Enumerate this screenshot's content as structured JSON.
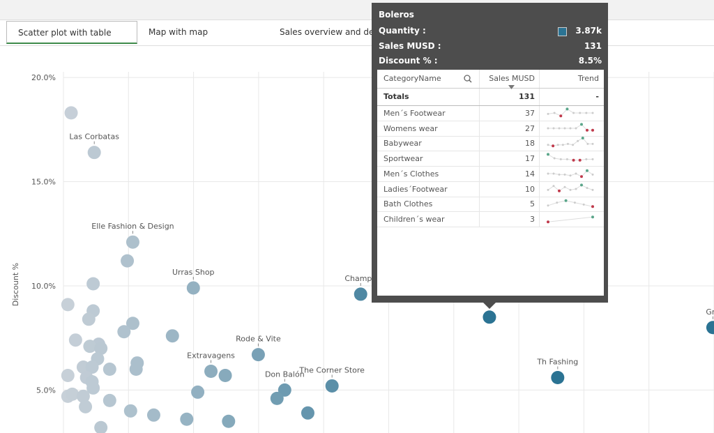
{
  "tabs": [
    "Scatter plot with table",
    "Map with map",
    "Sales overview and detai"
  ],
  "chart_data": {
    "type": "scatter",
    "ylabel": "Discount %",
    "ylim": [
      2.94,
      20.27
    ],
    "yticks": [
      {
        "value": 5,
        "label": "5.0%"
      },
      {
        "value": 10,
        "label": "10.0%"
      },
      {
        "value": 15,
        "label": "15.0%"
      },
      {
        "value": 20,
        "label": "20.0%"
      }
    ],
    "xlim": [
      0,
      5.91
    ],
    "color_range": [
      "#c9d1d9",
      "#2b7393"
    ],
    "x": [
      0.07,
      0.28,
      0.63,
      0.58,
      0.27,
      0.04,
      0.27,
      0.23,
      0.63,
      0.55,
      0.99,
      0.11,
      0.32,
      0.24,
      0.34,
      0.31,
      0.67,
      0.66,
      0.18,
      0.42,
      0.26,
      0.04,
      0.21,
      0.26,
      0.27,
      0.04,
      0.08,
      0.18,
      0.2,
      0.42,
      0.61,
      0.82,
      1.12,
      1.5,
      0.34,
      1.22,
      1.18,
      1.34,
      1.47,
      1.77,
      2.01,
      1.94,
      2.22,
      2.44,
      2.7,
      3.87,
      4.49,
      5.9
    ],
    "values": [
      18.3,
      16.4,
      12.1,
      11.2,
      10.1,
      9.1,
      8.8,
      8.4,
      8.2,
      7.8,
      7.6,
      7.4,
      7.2,
      7.1,
      7.0,
      6.5,
      6.3,
      6.0,
      6.1,
      6.0,
      6.1,
      5.7,
      5.6,
      5.4,
      5.1,
      4.7,
      4.8,
      4.7,
      4.2,
      4.5,
      4.0,
      3.8,
      3.6,
      3.5,
      3.2,
      4.9,
      9.9,
      5.9,
      5.7,
      6.7,
      5.0,
      4.6,
      3.9,
      5.2,
      9.6,
      8.5,
      5.6,
      8.0
    ],
    "point_labels": [
      null,
      "Las Corbatas",
      "Elle Fashion & Design",
      null,
      null,
      null,
      null,
      null,
      null,
      null,
      null,
      null,
      null,
      null,
      null,
      null,
      null,
      null,
      null,
      null,
      null,
      null,
      null,
      null,
      null,
      null,
      null,
      null,
      null,
      null,
      null,
      null,
      null,
      null,
      null,
      null,
      "Urras Shop",
      "Extravagens",
      null,
      "Rode & Vite",
      "Don Balón",
      null,
      null,
      "The Corner Store",
      "Champe",
      null,
      "Th Fashing",
      "Gru"
    ]
  },
  "tooltip": {
    "title": "Boleros",
    "rows": [
      {
        "label": "Quantity :",
        "value": "3.87k"
      },
      {
        "label": "Sales MUSD :",
        "value": "131"
      },
      {
        "label": "Discount % :",
        "value": "8.5%"
      }
    ],
    "swatch_color": "#2b7393",
    "table": {
      "headers": [
        "CategoryName",
        "Sales MUSD",
        "Trend"
      ],
      "totals": [
        "Totals",
        "131",
        "-"
      ],
      "rows": [
        {
          "name": "Men´s Footwear",
          "sales": 37,
          "trend": [
            4,
            5,
            2,
            9,
            5,
            5,
            5,
            5
          ]
        },
        {
          "name": "Womens wear",
          "sales": 27,
          "trend": [
            5,
            5,
            5,
            5,
            5,
            5,
            9,
            3,
            3
          ]
        },
        {
          "name": "Babywear",
          "sales": 18,
          "trend": [
            3,
            2,
            3,
            3,
            4,
            3,
            7,
            10,
            4,
            4
          ]
        },
        {
          "name": "Sportwear",
          "sales": 17,
          "trend": [
            9,
            5,
            4,
            4,
            3,
            3,
            4,
            4
          ]
        },
        {
          "name": "Men´s Clothes",
          "sales": 14,
          "trend": [
            5,
            5,
            4,
            4,
            3,
            5,
            2,
            8,
            4
          ]
        },
        {
          "name": "Ladies´Footwear",
          "sales": 10,
          "trend": [
            4,
            8,
            3,
            7,
            4,
            5,
            9,
            6,
            4
          ]
        },
        {
          "name": "Bath Clothes",
          "sales": 5,
          "trend": [
            3,
            6,
            8,
            6,
            4,
            2
          ]
        },
        {
          "name": "Children´s wear",
          "sales": 3,
          "trend": [
            2,
            7
          ]
        }
      ]
    }
  }
}
